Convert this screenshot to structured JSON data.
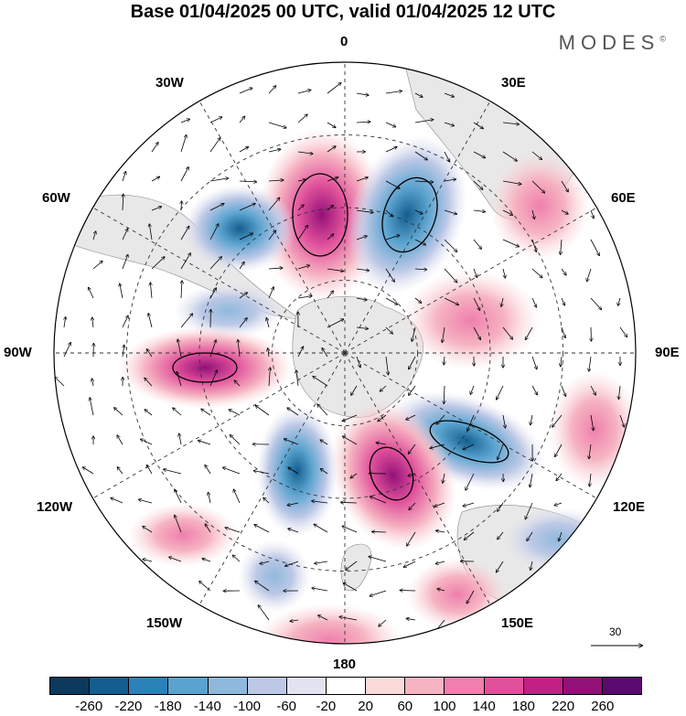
{
  "title": "Base 01/04/2025 00 UTC, valid 01/04/2025 12 UTC",
  "brand": "MODES",
  "brand_mark": "©",
  "map": {
    "projection": "south-polar-stereographic",
    "longitude_labels": {
      "top": "0",
      "top_right": "30E",
      "right_upper": "60E",
      "right": "90E",
      "right_lower": "120E",
      "bottom_right": "150E",
      "bottom": "180",
      "bottom_left": "150W",
      "left_lower": "120W",
      "left": "90W",
      "left_upper": "60W",
      "top_left": "30W"
    },
    "vector_scale_label": "30",
    "land_color": "#e8e8e8"
  },
  "colorbar": {
    "colors": [
      "#0b3a5c",
      "#145e8f",
      "#2a82b8",
      "#5aa3cf",
      "#8fb9dc",
      "#bcc8e6",
      "#e3e3f1",
      "#ffffff",
      "#fbdada",
      "#f6b4c2",
      "#ef7fad",
      "#e0509b",
      "#c41f85",
      "#921178",
      "#5a0a6e"
    ],
    "ticks": [
      "-260",
      "-220",
      "-180",
      "-140",
      "-100",
      "-60",
      "-20",
      "20",
      "60",
      "100",
      "140",
      "180",
      "220",
      "260"
    ]
  }
}
